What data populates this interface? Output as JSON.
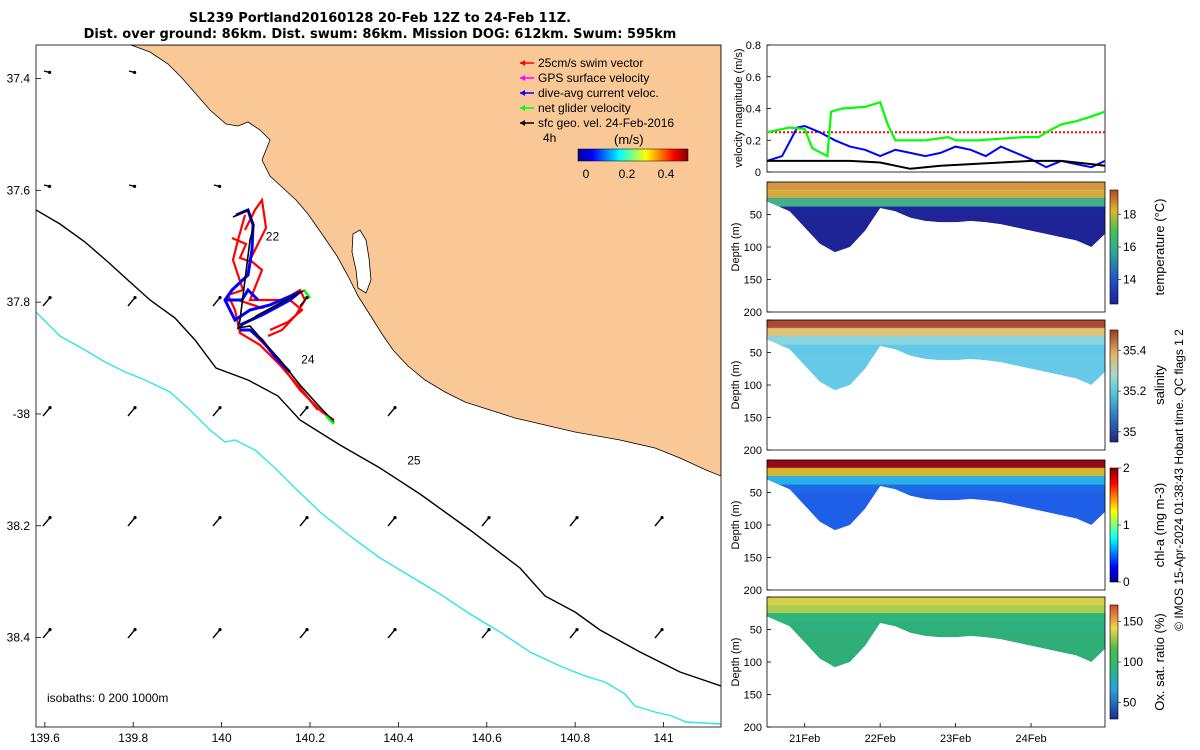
{
  "title": {
    "line1": "SL239 Portland20160128 20-Feb 12Z to 24-Feb 11Z.",
    "line2": "Dist. over ground: 86km. Dist. swum: 86km. Mission DOG: 612km. Swum: 595km"
  },
  "map": {
    "xlim": [
      139.58,
      141.13
    ],
    "ylim": [
      -38.56,
      -37.34
    ],
    "x_ticks": [
      139.6,
      139.8,
      140,
      140.2,
      140.4,
      140.6,
      140.8,
      141
    ],
    "x_tick_labels": [
      "139.6",
      "139.8",
      "140",
      "140.2",
      "140.4",
      "140.6",
      "140.8",
      "141"
    ],
    "y_ticks": [
      -37.4,
      -37.6,
      -37.8,
      -38,
      -38.2,
      -38.4
    ],
    "y_tick_labels": [
      "37.4",
      "37.6",
      "37.8",
      "-38",
      "38.2",
      "38.4"
    ],
    "day_labels": [
      {
        "text": "22",
        "lon": 140.1,
        "lat": -37.69
      },
      {
        "text": "24",
        "lon": 140.18,
        "lat": -37.91
      },
      {
        "text": "25",
        "lon": 140.42,
        "lat": -38.09
      }
    ],
    "isobaths_label": "isobaths: 0   200  1000m",
    "land_color": "#f9c896",
    "legend": [
      {
        "label": "25cm/s swim vector",
        "color": "#ff0000"
      },
      {
        "label": "GPS surface velocity",
        "color": "#ff00ff"
      },
      {
        "label": "dive-avg current veloc.",
        "color": "#0000ff"
      },
      {
        "label": "net glider velocity",
        "color": "#00ff00"
      },
      {
        "label": "sfc geo. vel. 24-Feb-2016",
        "color": "#000000"
      }
    ],
    "legend_time": "4h",
    "colorbar_title": "(m/s)",
    "colorbar_ticks": [
      "0",
      "0.2",
      "0.4"
    ]
  },
  "chart_data": [
    {
      "type": "line",
      "title": "",
      "ylabel": "velocity magnitude (m/s)",
      "xlim": [
        20.5,
        24.98
      ],
      "ylim": [
        0,
        0.8
      ],
      "y_ticks": [
        "0",
        "0.2",
        "0.4",
        "0.6",
        "0.8"
      ],
      "series": [
        {
          "name": "25cm/s swim vector",
          "color": "#ff0000",
          "x": [
            20.5,
            20.9,
            21.4,
            22.0,
            22.6,
            23.2,
            23.8,
            24.4,
            24.98
          ],
          "values": [
            0.25,
            0.25,
            0.25,
            0.25,
            0.25,
            0.25,
            0.25,
            0.25,
            0.25
          ]
        },
        {
          "name": "dive-avg current veloc.",
          "color": "#0000ff",
          "x": [
            20.5,
            20.7,
            20.9,
            21.0,
            21.2,
            21.4,
            21.6,
            21.8,
            22.0,
            22.2,
            22.4,
            22.6,
            22.8,
            23.0,
            23.2,
            23.4,
            23.6,
            23.8,
            24.0,
            24.2,
            24.4,
            24.6,
            24.8,
            24.98
          ],
          "values": [
            0.07,
            0.1,
            0.28,
            0.29,
            0.25,
            0.2,
            0.16,
            0.14,
            0.1,
            0.14,
            0.12,
            0.1,
            0.12,
            0.16,
            0.14,
            0.1,
            0.16,
            0.12,
            0.08,
            0.03,
            0.07,
            0.05,
            0.03,
            0.07
          ]
        },
        {
          "name": "net glider velocity",
          "color": "#00ff00",
          "x": [
            20.5,
            20.8,
            21.0,
            21.1,
            21.3,
            21.35,
            21.5,
            21.8,
            22.0,
            22.1,
            22.2,
            22.4,
            22.6,
            22.9,
            23.0,
            23.3,
            23.6,
            23.9,
            24.1,
            24.2,
            24.4,
            24.6,
            24.8,
            24.98
          ],
          "values": [
            0.25,
            0.28,
            0.27,
            0.15,
            0.1,
            0.38,
            0.4,
            0.41,
            0.44,
            0.3,
            0.2,
            0.2,
            0.2,
            0.22,
            0.2,
            0.2,
            0.21,
            0.22,
            0.22,
            0.25,
            0.3,
            0.32,
            0.35,
            0.38
          ]
        },
        {
          "name": "sfc geo. vel. 24-Feb-2016",
          "color": "#000000",
          "x": [
            20.5,
            20.8,
            21.0,
            21.3,
            21.6,
            22.0,
            22.4,
            22.8,
            23.2,
            23.6,
            24.0,
            24.4,
            24.8,
            24.98
          ],
          "values": [
            0.07,
            0.07,
            0.07,
            0.07,
            0.07,
            0.06,
            0.02,
            0.04,
            0.05,
            0.06,
            0.07,
            0.07,
            0.05,
            0.04
          ]
        }
      ]
    },
    {
      "type": "heatmap",
      "title": "",
      "ylabel": "Depth (m)",
      "ylim": [
        200,
        0
      ],
      "y_ticks": [
        "0",
        "50",
        "100",
        "150",
        "200"
      ],
      "colorbar_label": "temperature (°C)",
      "colorbar_ticks": [
        "14",
        "16",
        "18"
      ],
      "color_range": [
        12.5,
        19.5
      ]
    },
    {
      "type": "heatmap",
      "title": "",
      "ylabel": "Depth (m)",
      "ylim": [
        200,
        0
      ],
      "y_ticks": [
        "0",
        "50",
        "100",
        "150",
        "200"
      ],
      "colorbar_label": "salinity",
      "colorbar_ticks": [
        "35",
        "35.2",
        "35.4"
      ],
      "color_range": [
        34.95,
        35.5
      ]
    },
    {
      "type": "heatmap",
      "title": "",
      "ylabel": "Depth (m)",
      "ylim": [
        200,
        0
      ],
      "y_ticks": [
        "0",
        "50",
        "100",
        "150",
        "200"
      ],
      "colorbar_label": "chl-a (mg m-3)",
      "colorbar_ticks": [
        "0",
        "1",
        "2"
      ],
      "color_range": [
        0,
        2
      ]
    },
    {
      "type": "heatmap",
      "title": "",
      "ylabel": "Depth (m)",
      "ylim": [
        200,
        0
      ],
      "y_ticks": [
        "0",
        "50",
        "100",
        "150",
        "200"
      ],
      "colorbar_label": "Ox. sat. ratio (%)",
      "colorbar_ticks": [
        "50",
        "100",
        "150"
      ],
      "color_range": [
        30,
        170
      ]
    }
  ],
  "time_axis": {
    "labels": [
      "21Feb",
      "22Feb",
      "23Feb",
      "24Feb"
    ],
    "positions": [
      21,
      22,
      23,
      24
    ]
  },
  "profile_bottom_depth": {
    "x": [
      20.5,
      20.8,
      21.0,
      21.2,
      21.4,
      21.6,
      21.8,
      22.0,
      22.2,
      22.4,
      22.6,
      22.8,
      23.0,
      23.2,
      23.4,
      23.6,
      23.8,
      24.0,
      24.2,
      24.4,
      24.6,
      24.8,
      24.98
    ],
    "depth": [
      30,
      45,
      70,
      95,
      108,
      100,
      75,
      40,
      45,
      55,
      60,
      62,
      62,
      60,
      62,
      65,
      70,
      75,
      80,
      85,
      90,
      100,
      80
    ]
  },
  "credit": "© IMOS 15-Apr-2024 01:38:43 Hobart time. QC flags 1  2"
}
